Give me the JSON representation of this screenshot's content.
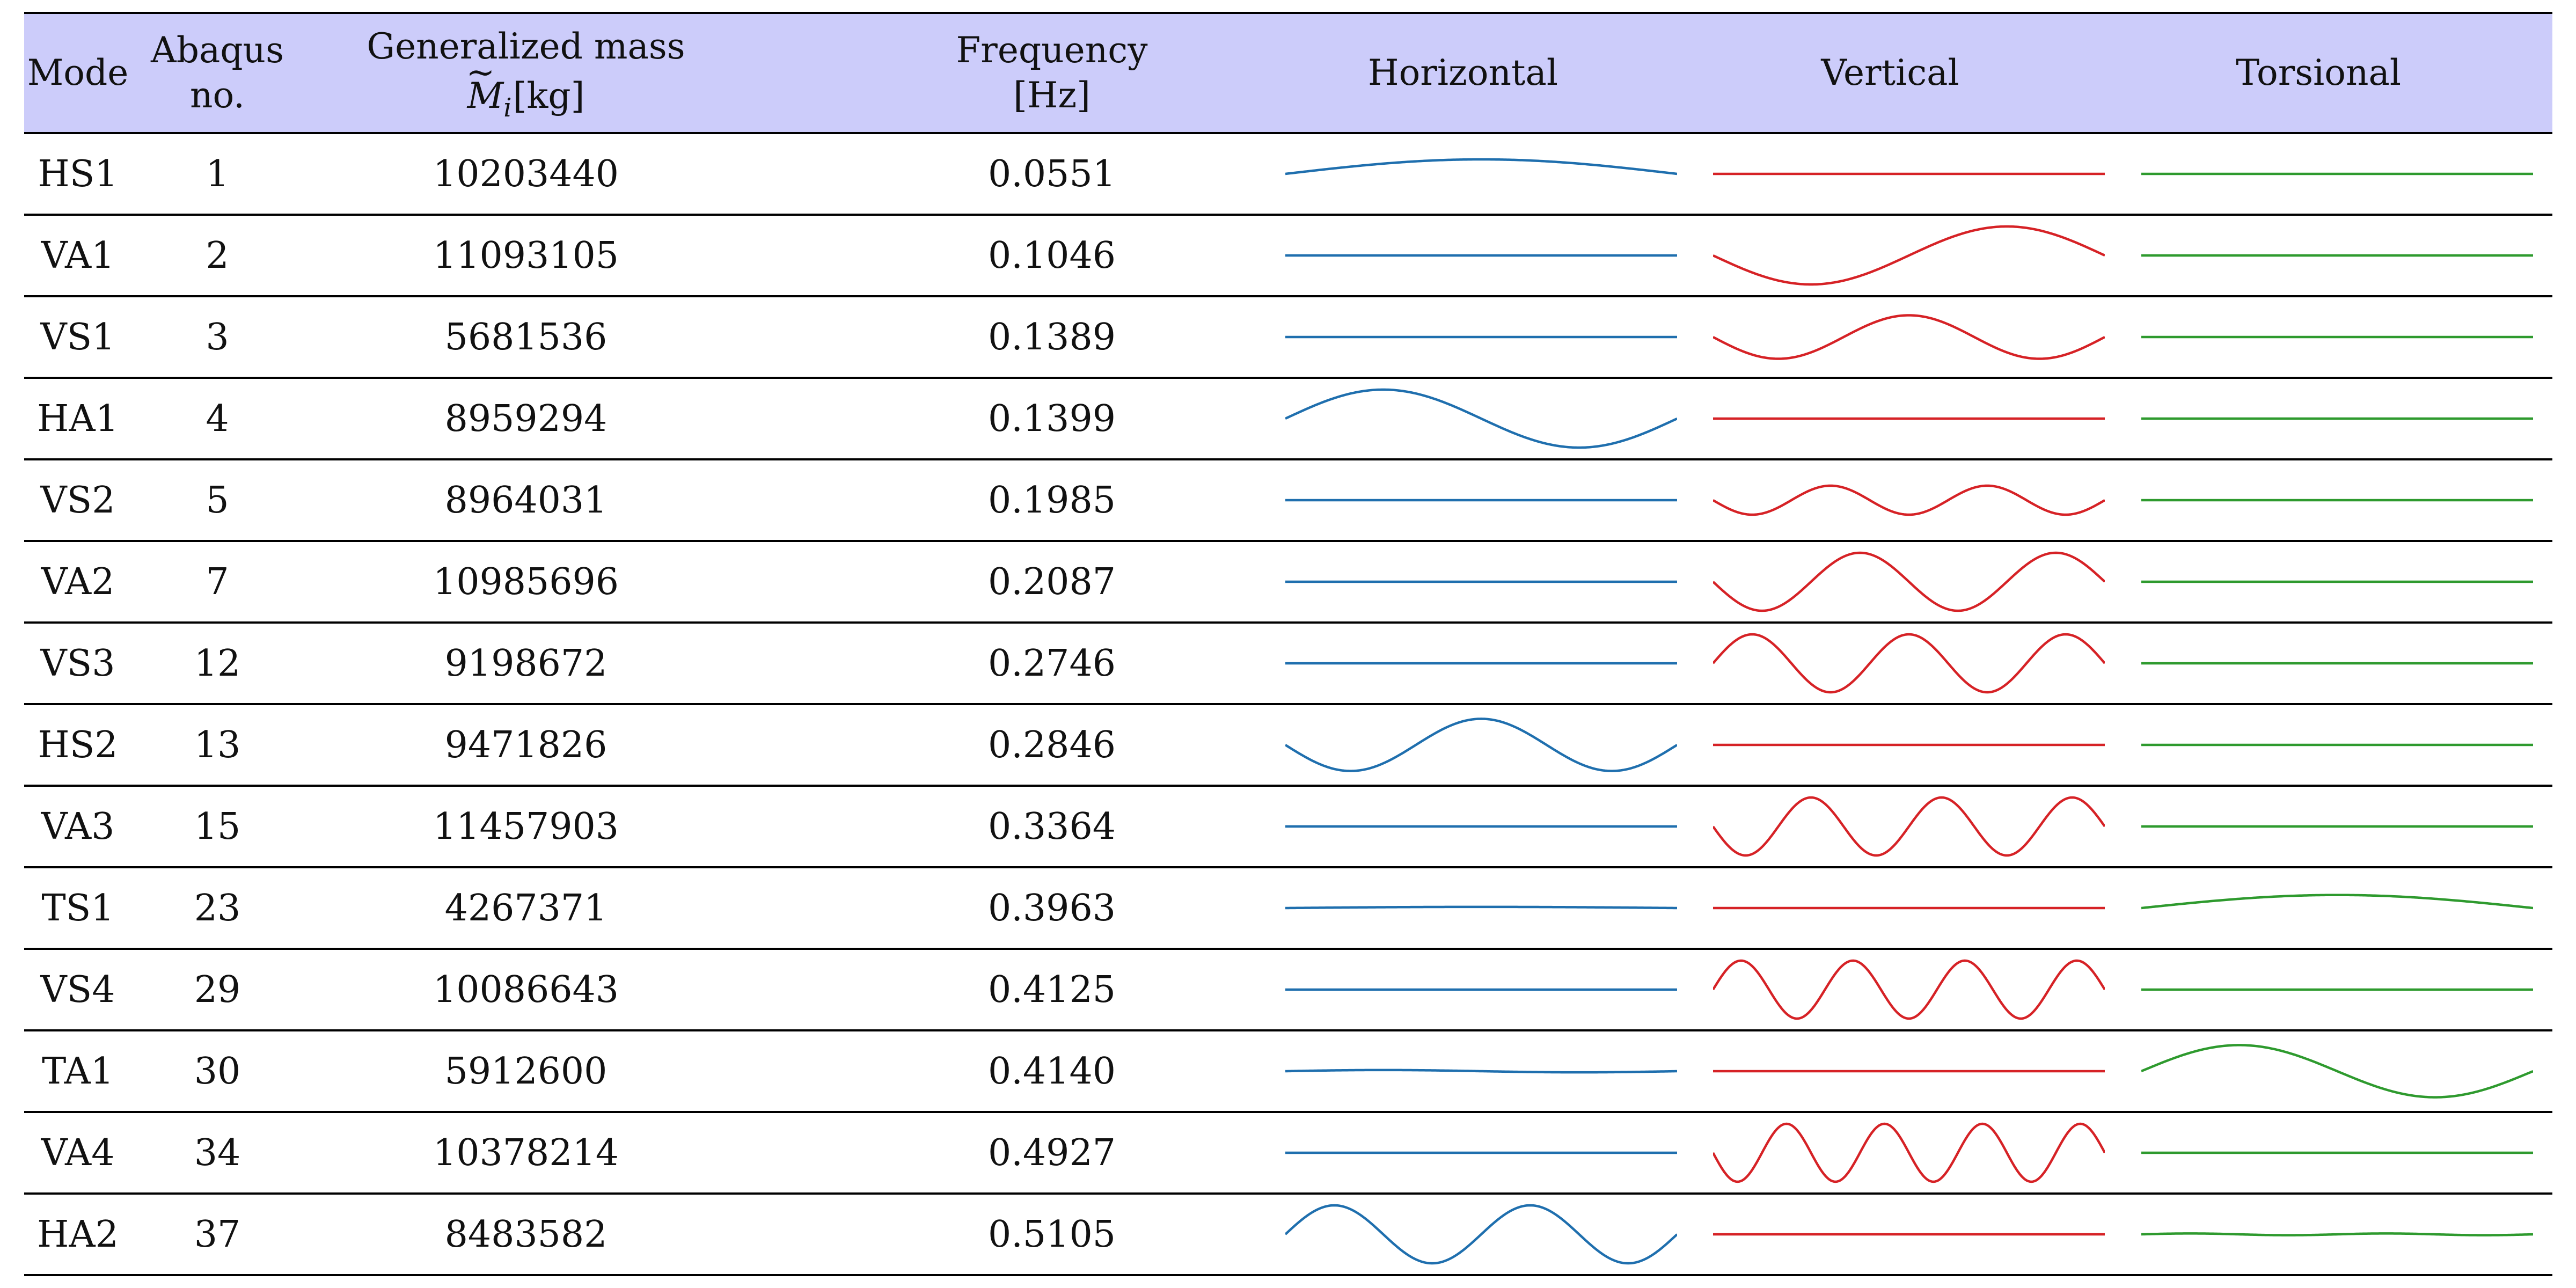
{
  "table": {
    "headers": {
      "mode": "Mode",
      "abaqus_line1": "Abaqus",
      "abaqus_line2": "no.",
      "mass_line1": "Generalized mass",
      "mass_symbol": "M",
      "mass_subscript": "i",
      "mass_unit": "[kg]",
      "freq_line1": "Frequency",
      "freq_line2": "[Hz]",
      "horizontal": "Horizontal",
      "vertical": "Vertical",
      "torsional": "Torsional"
    },
    "colors": {
      "header_bg": "#ccccfa",
      "horizontal": "#1f6fae",
      "vertical": "#d62226",
      "torsional": "#2e9a2e"
    },
    "rows": [
      {
        "mode": "HS1",
        "abaqus": "1",
        "mass": "10203440",
        "freq": "0.0551",
        "horizontal": {
          "half_waves": 1,
          "amp": 0.5,
          "sign": 1
        },
        "vertical": {
          "half_waves": 1,
          "amp": 0.0,
          "sign": 1
        },
        "torsional": {
          "half_waves": 1,
          "amp": 0.0,
          "sign": 1
        }
      },
      {
        "mode": "VA1",
        "abaqus": "2",
        "mass": "11093105",
        "freq": "0.1046",
        "horizontal": {
          "half_waves": 2,
          "amp": 0.0,
          "sign": 1
        },
        "vertical": {
          "half_waves": 2,
          "amp": 1.0,
          "sign": -1
        },
        "torsional": {
          "half_waves": 2,
          "amp": 0.0,
          "sign": 1
        }
      },
      {
        "mode": "VS1",
        "abaqus": "3",
        "mass": "5681536",
        "freq": "0.1389",
        "horizontal": {
          "half_waves": 3,
          "amp": 0.0,
          "sign": 1
        },
        "vertical": {
          "half_waves": 3,
          "amp": 0.75,
          "sign": -1
        },
        "torsional": {
          "half_waves": 3,
          "amp": 0.0,
          "sign": 1
        }
      },
      {
        "mode": "HA1",
        "abaqus": "4",
        "mass": "8959294",
        "freq": "0.1399",
        "horizontal": {
          "half_waves": 2,
          "amp": 1.0,
          "sign": 1
        },
        "vertical": {
          "half_waves": 2,
          "amp": 0.0,
          "sign": 1
        },
        "torsional": {
          "half_waves": 2,
          "amp": 0.0,
          "sign": 1
        }
      },
      {
        "mode": "VS2",
        "abaqus": "5",
        "mass": "8964031",
        "freq": "0.1985",
        "horizontal": {
          "half_waves": 5,
          "amp": 0.0,
          "sign": 1
        },
        "vertical": {
          "half_waves": 5,
          "amp": 0.5,
          "sign": -1
        },
        "torsional": {
          "half_waves": 5,
          "amp": 0.0,
          "sign": 1
        }
      },
      {
        "mode": "VA2",
        "abaqus": "7",
        "mass": "10985696",
        "freq": "0.2087",
        "horizontal": {
          "half_waves": 4,
          "amp": 0.0,
          "sign": 1
        },
        "vertical": {
          "half_waves": 4,
          "amp": 1.0,
          "sign": -1
        },
        "torsional": {
          "half_waves": 4,
          "amp": 0.0,
          "sign": 1
        }
      },
      {
        "mode": "VS3",
        "abaqus": "12",
        "mass": "9198672",
        "freq": "0.2746",
        "horizontal": {
          "half_waves": 5,
          "amp": 0.0,
          "sign": 1
        },
        "vertical": {
          "half_waves": 5,
          "amp": 1.0,
          "sign": 1
        },
        "torsional": {
          "half_waves": 5,
          "amp": 0.0,
          "sign": 1
        }
      },
      {
        "mode": "HS2",
        "abaqus": "13",
        "mass": "9471826",
        "freq": "0.2846",
        "horizontal": {
          "half_waves": 3,
          "amp": 0.9,
          "sign": -1
        },
        "vertical": {
          "half_waves": 3,
          "amp": 0.0,
          "sign": 1
        },
        "torsional": {
          "half_waves": 3,
          "amp": 0.0,
          "sign": 1
        }
      },
      {
        "mode": "VA3",
        "abaqus": "15",
        "mass": "11457903",
        "freq": "0.3364",
        "horizontal": {
          "half_waves": 6,
          "amp": 0.0,
          "sign": 1
        },
        "vertical": {
          "half_waves": 6,
          "amp": 1.0,
          "sign": -1
        },
        "torsional": {
          "half_waves": 6,
          "amp": 0.0,
          "sign": 1
        }
      },
      {
        "mode": "TS1",
        "abaqus": "23",
        "mass": "4267371",
        "freq": "0.3963",
        "horizontal": {
          "half_waves": 1,
          "amp": 0.04,
          "sign": 1
        },
        "vertical": {
          "half_waves": 1,
          "amp": 0.0,
          "sign": 1
        },
        "torsional": {
          "half_waves": 1,
          "amp": 0.45,
          "sign": 1
        }
      },
      {
        "mode": "VS4",
        "abaqus": "29",
        "mass": "10086643",
        "freq": "0.4125",
        "horizontal": {
          "half_waves": 7,
          "amp": 0.0,
          "sign": 1
        },
        "vertical": {
          "half_waves": 7,
          "amp": 1.0,
          "sign": 1
        },
        "torsional": {
          "half_waves": 7,
          "amp": 0.0,
          "sign": 1
        }
      },
      {
        "mode": "TA1",
        "abaqus": "30",
        "mass": "5912600",
        "freq": "0.4140",
        "horizontal": {
          "half_waves": 2,
          "amp": 0.04,
          "sign": 1
        },
        "vertical": {
          "half_waves": 2,
          "amp": 0.0,
          "sign": 1
        },
        "torsional": {
          "half_waves": 2,
          "amp": 0.9,
          "sign": 1
        }
      },
      {
        "mode": "VA4",
        "abaqus": "34",
        "mass": "10378214",
        "freq": "0.4927",
        "horizontal": {
          "half_waves": 8,
          "amp": 0.0,
          "sign": 1
        },
        "vertical": {
          "half_waves": 8,
          "amp": 1.0,
          "sign": -1
        },
        "torsional": {
          "half_waves": 8,
          "amp": 0.0,
          "sign": 1
        }
      },
      {
        "mode": "HA2",
        "abaqus": "37",
        "mass": "8483582",
        "freq": "0.5105",
        "horizontal": {
          "half_waves": 4,
          "amp": 1.0,
          "sign": 1
        },
        "vertical": {
          "half_waves": 4,
          "amp": 0.0,
          "sign": 1
        },
        "torsional": {
          "half_waves": 4,
          "amp": 0.03,
          "sign": 1
        }
      }
    ]
  }
}
